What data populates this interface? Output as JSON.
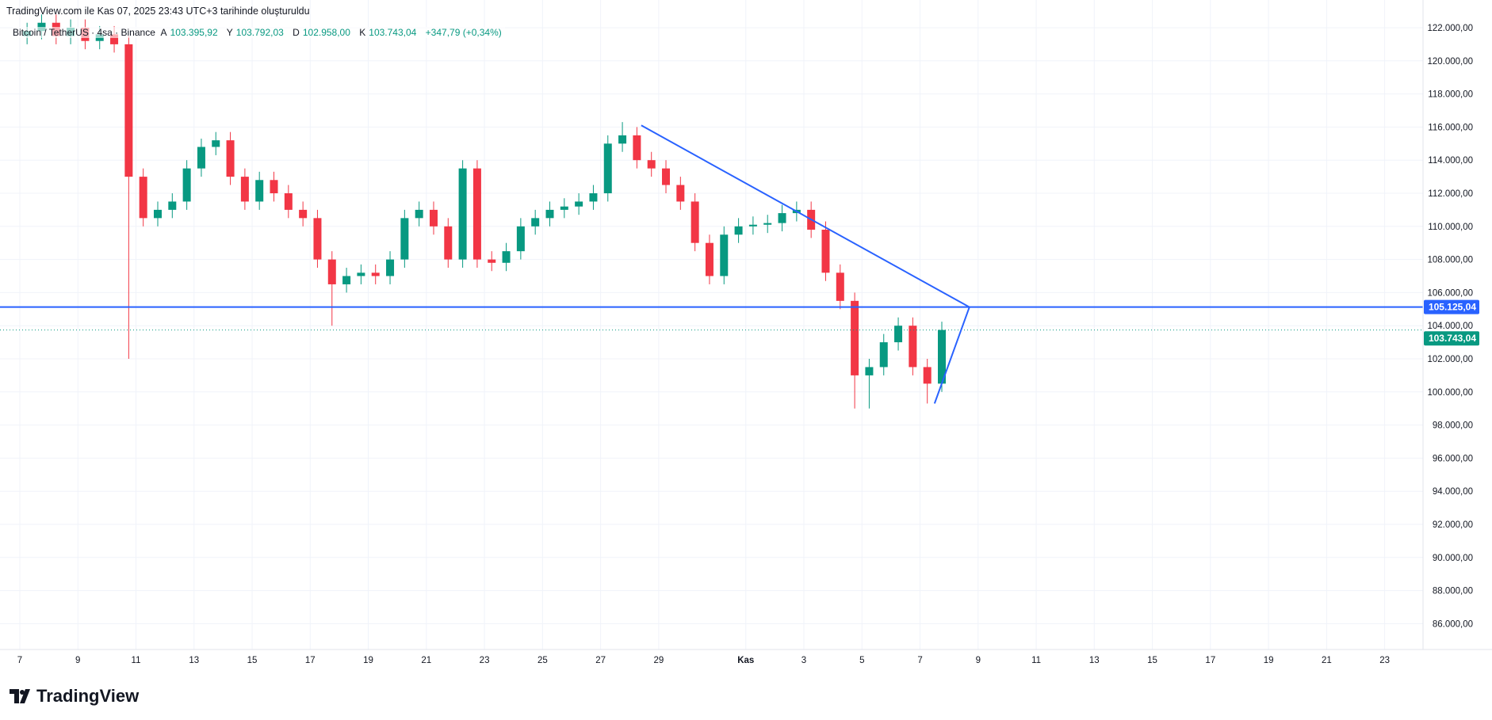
{
  "header": {
    "created_text": "TradingView.com ile Kas 07, 2025 23:43 UTC+3 tarihinde oluşturuldu"
  },
  "legend": {
    "symbol": "Bitcoin / TetherUS · 4sa · Binance",
    "open_label": "A",
    "open": "103.395,92",
    "high_label": "Y",
    "high": "103.792,03",
    "low_label": "D",
    "low": "102.958,00",
    "close_label": "K",
    "close": "103.743,04",
    "change": "+347,79 (+0,34%)"
  },
  "logo": {
    "text": "TradingView"
  },
  "colors": {
    "up": "#089981",
    "down": "#f23645",
    "line": "#2962ff",
    "grid": "#f0f3fa"
  },
  "chart_data": {
    "type": "candlestick",
    "interval": "4sa",
    "y_ticks": [
      "122.000,00",
      "120.000,00",
      "118.000,00",
      "116.000,00",
      "114.000,00",
      "112.000,00",
      "110.000,00",
      "108.000,00",
      "106.000,00",
      "104.000,00",
      "102.000,00",
      "100.000,00",
      "98.000,00",
      "96.000,00",
      "94.000,00",
      "92.000,00",
      "90.000,00",
      "88.000,00",
      "86.000,00"
    ],
    "ylim": [
      84800,
      123500
    ],
    "x_ticks": [
      {
        "label": "7",
        "day": 0
      },
      {
        "label": "9",
        "day": 2
      },
      {
        "label": "11",
        "day": 4
      },
      {
        "label": "13",
        "day": 6
      },
      {
        "label": "15",
        "day": 8
      },
      {
        "label": "17",
        "day": 10
      },
      {
        "label": "19",
        "day": 12
      },
      {
        "label": "21",
        "day": 14
      },
      {
        "label": "23",
        "day": 16
      },
      {
        "label": "25",
        "day": 18
      },
      {
        "label": "27",
        "day": 20
      },
      {
        "label": "29",
        "day": 22
      },
      {
        "label": "Kas",
        "day": 25
      },
      {
        "label": "3",
        "day": 27
      },
      {
        "label": "5",
        "day": 29
      },
      {
        "label": "7",
        "day": 31
      },
      {
        "label": "9",
        "day": 33
      },
      {
        "label": "11",
        "day": 35
      },
      {
        "label": "13",
        "day": 37
      },
      {
        "label": "15",
        "day": 39
      },
      {
        "label": "17",
        "day": 41
      },
      {
        "label": "19",
        "day": 43
      },
      {
        "label": "21",
        "day": 45
      },
      {
        "label": "23",
        "day": 47
      }
    ],
    "candle_step_days": 0.5,
    "first_open": 121500,
    "close": [
      121800,
      122300,
      121500,
      122000,
      121200,
      121600,
      121000,
      113000,
      110500,
      111000,
      111500,
      113500,
      114800,
      115200,
      113000,
      111500,
      112800,
      112000,
      111000,
      110500,
      108000,
      106500,
      107000,
      107200,
      107000,
      108000,
      110500,
      111000,
      110000,
      108000,
      113500,
      108000,
      107800,
      108500,
      110000,
      110500,
      111000,
      111200,
      111500,
      112000,
      115000,
      115500,
      114000,
      113500,
      112500,
      111500,
      109000,
      107000,
      109500,
      110000,
      110100,
      110200,
      110800,
      111000,
      109800,
      107200,
      105500,
      101000,
      101500,
      103000,
      104000,
      101500,
      100500,
      103743
    ],
    "default_wick": 500,
    "wick_overrides": {
      "7": {
        "high": 121500,
        "low": 102000
      },
      "21": {
        "low": 104000
      },
      "30": {
        "high": 114000
      },
      "41": {
        "high": 116300
      },
      "47": {
        "low": 106500
      },
      "57": {
        "low": 99000
      },
      "58": {
        "low": 99000
      },
      "62": {
        "low": 99300
      }
    },
    "horizontal_line": {
      "price": 105125.04,
      "label": "105.125,04"
    },
    "last_price": {
      "price": 103743.04,
      "label": "103.743,04"
    },
    "trendlines": [
      {
        "from": {
          "day": 21.4,
          "price": 116100
        },
        "to": {
          "day": 32.7,
          "price": 105125
        }
      },
      {
        "from": {
          "day": 31.5,
          "price": 99300
        },
        "to": {
          "day": 32.7,
          "price": 105125
        }
      }
    ]
  }
}
